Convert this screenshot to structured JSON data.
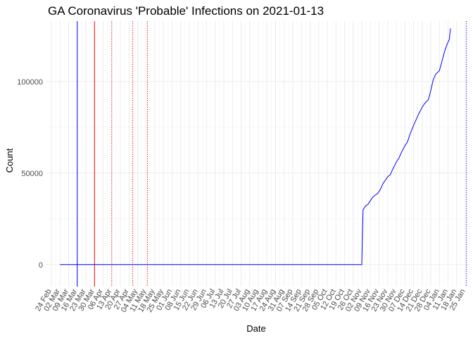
{
  "chart_data": {
    "type": "line",
    "title": "GA Coronavirus 'Probable' Infections on 2021-01-13",
    "xlabel": "Date",
    "ylabel": "Count",
    "ylim": [
      -12000,
      133000
    ],
    "xlim": [
      "2020-02-20",
      "2021-01-29"
    ],
    "x_ticks": [
      "2020-02-24",
      "2020-03-02",
      "2020-03-09",
      "2020-03-16",
      "2020-03-23",
      "2020-03-30",
      "2020-04-06",
      "2020-04-13",
      "2020-04-20",
      "2020-04-27",
      "2020-05-04",
      "2020-05-11",
      "2020-05-18",
      "2020-05-25",
      "2020-06-01",
      "2020-06-08",
      "2020-06-15",
      "2020-06-22",
      "2020-06-29",
      "2020-07-06",
      "2020-07-13",
      "2020-07-20",
      "2020-07-27",
      "2020-08-03",
      "2020-08-10",
      "2020-08-17",
      "2020-08-24",
      "2020-08-31",
      "2020-09-07",
      "2020-09-14",
      "2020-09-21",
      "2020-09-28",
      "2020-10-05",
      "2020-10-12",
      "2020-10-19",
      "2020-10-26",
      "2020-11-02",
      "2020-11-09",
      "2020-11-16",
      "2020-11-23",
      "2020-11-30",
      "2020-12-07",
      "2020-12-14",
      "2020-12-21",
      "2020-12-28",
      "2021-01-04",
      "2021-01-11",
      "2021-01-18",
      "2021-01-25"
    ],
    "x_tick_labels": [
      "24 Feb",
      "02 Mar",
      "09 Mar",
      "16 Mar",
      "23 Mar",
      "30 Mar",
      "06 Apr",
      "13 Apr",
      "20 Apr",
      "27 Apr",
      "04 May",
      "11 May",
      "18 May",
      "25 May",
      "01 Jun",
      "08 Jun",
      "15 Jun",
      "22 Jun",
      "29 Jun",
      "06 Jul",
      "13 Jul",
      "20 Jul",
      "27 Jul",
      "03 Aug",
      "10 Aug",
      "17 Aug",
      "24 Aug",
      "31 Aug",
      "07 Sep",
      "14 Sep",
      "21 Sep",
      "28 Sep",
      "05 Oct",
      "12 Oct",
      "19 Oct",
      "26 Oct",
      "02 Nov",
      "09 Nov",
      "16 Nov",
      "23 Nov",
      "30 Nov",
      "07 Dec",
      "14 Dec",
      "21 Dec",
      "28 Dec",
      "04 Jan",
      "11 Jan",
      "18 Jan",
      "25 Jan"
    ],
    "y_ticks": [
      0,
      50000,
      100000
    ],
    "y_tick_labels": [
      "0",
      "50000",
      "100000"
    ],
    "grid": true,
    "series": [
      {
        "color": "#0000ff",
        "x": [
          "2020-03-02",
          "2020-03-30",
          "2020-04-30",
          "2020-06-01",
          "2020-07-01",
          "2020-08-01",
          "2020-09-01",
          "2020-10-01",
          "2020-10-31",
          "2020-11-02",
          "2020-11-03",
          "2020-11-05",
          "2020-11-07",
          "2020-11-09",
          "2020-11-11",
          "2020-11-13",
          "2020-11-15",
          "2020-11-17",
          "2020-11-19",
          "2020-11-21",
          "2020-11-23",
          "2020-11-25",
          "2020-11-27",
          "2020-11-30",
          "2020-12-02",
          "2020-12-04",
          "2020-12-07",
          "2020-12-09",
          "2020-12-11",
          "2020-12-14",
          "2020-12-16",
          "2020-12-18",
          "2020-12-21",
          "2020-12-23",
          "2020-12-26",
          "2020-12-28",
          "2020-12-30",
          "2021-01-01",
          "2021-01-04",
          "2021-01-06",
          "2021-01-08",
          "2021-01-10",
          "2021-01-12",
          "2021-01-13"
        ],
        "y": [
          0,
          0,
          0,
          0,
          0,
          0,
          0,
          0,
          0,
          0,
          30000,
          32000,
          33000,
          35000,
          37000,
          38000,
          39000,
          41000,
          44000,
          46000,
          48000,
          49000,
          52000,
          56000,
          58000,
          61000,
          65000,
          67000,
          71000,
          76000,
          79000,
          82000,
          86000,
          88000,
          90000,
          95000,
          101000,
          104000,
          106000,
          111000,
          116000,
          120000,
          123000,
          129000
        ]
      }
    ],
    "reference_lines": [
      {
        "x": "2020-03-16",
        "color": "#0000ff",
        "style": "solid"
      },
      {
        "x": "2020-03-30",
        "color": "#ff0000",
        "style": "solid"
      },
      {
        "x": "2020-04-13",
        "color": "#ff0000",
        "style": "dotted"
      },
      {
        "x": "2020-04-30",
        "color": "#ff0000",
        "style": "dotted"
      },
      {
        "x": "2020-05-12",
        "color": "#ff0000",
        "style": "dotted"
      },
      {
        "x": "2021-01-26",
        "color": "#0000ff",
        "style": "dotted"
      }
    ]
  }
}
